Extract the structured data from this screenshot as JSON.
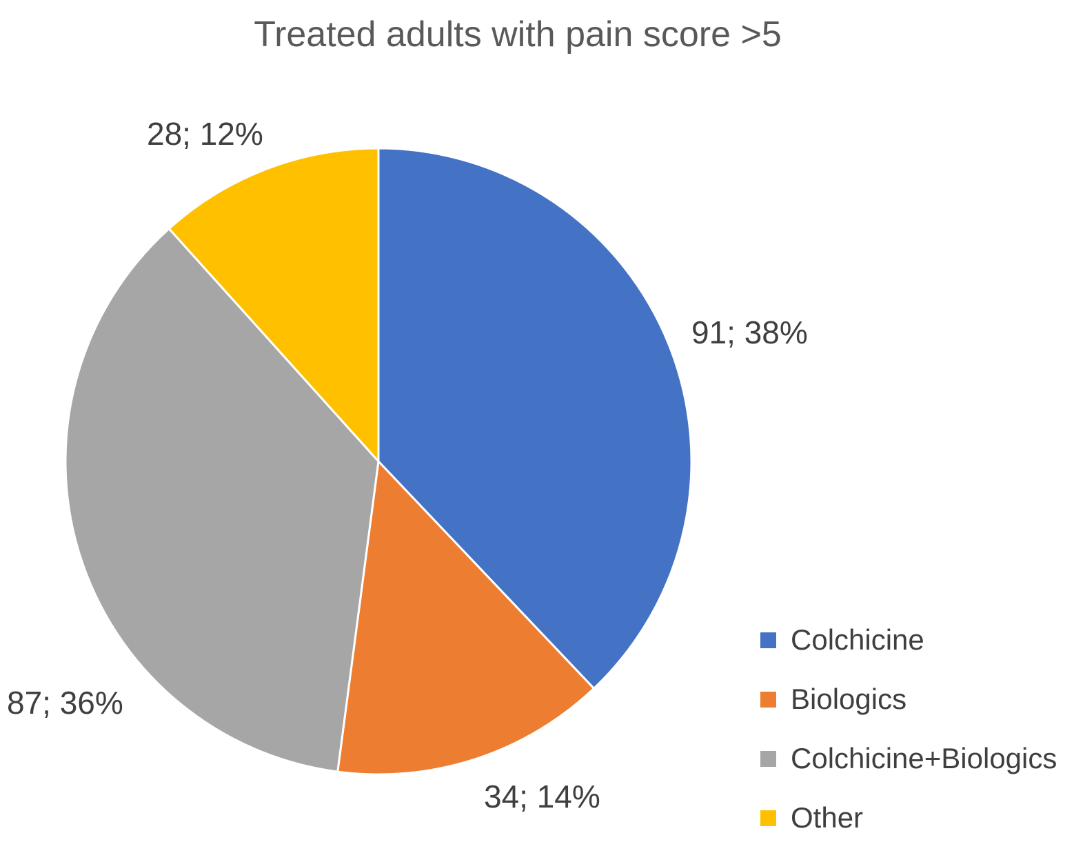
{
  "chart_data": {
    "type": "pie",
    "title": "Treated adults with pain score >5",
    "total": 240,
    "start_angle_deg": 0,
    "direction": "clockwise",
    "legend_position": "bottom-right",
    "label_format": "count; percent",
    "background_color": "#ffffff",
    "title_color": "#595959",
    "label_color": "#3f3f3f",
    "slice_gap_color": "#ffffff",
    "slices": [
      {
        "name": "Colchicine",
        "value": 91,
        "percent": 38,
        "label": "91; 38%",
        "color": "#4472C4"
      },
      {
        "name": "Biologics",
        "value": 34,
        "percent": 14,
        "label": "34; 14%",
        "color": "#ED7D31"
      },
      {
        "name": "Colchicine+Biologics",
        "value": 87,
        "percent": 36,
        "label": "87; 36%",
        "color": "#A6A6A6"
      },
      {
        "name": "Other",
        "value": 28,
        "percent": 12,
        "label": "28; 12%",
        "color": "#FFC000"
      }
    ]
  }
}
